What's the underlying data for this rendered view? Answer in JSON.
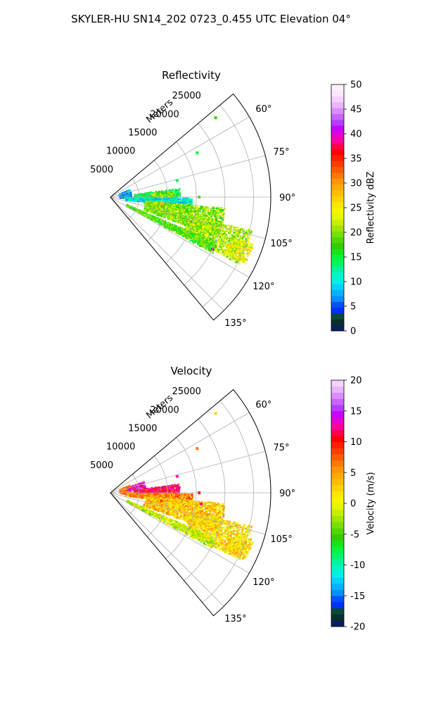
{
  "figure": {
    "suptitle": "SKYLER-HU  SN14_202  0723_0.455 UTC Elevation 04°"
  },
  "chart_data": [
    {
      "type": "heatmap",
      "subtype": "polar-sector-radar-ppi",
      "title": "Reflectivity",
      "radial_label": "Meters",
      "radial_ticks": [
        "5000",
        "10000",
        "15000",
        "20000",
        "25000"
      ],
      "angular_ticks": [
        "60°",
        "75°",
        "90°",
        "105°",
        "120°",
        "135°"
      ],
      "theta_range_deg": [
        50,
        140
      ],
      "r_range_m": [
        0,
        28000
      ],
      "grid": true,
      "colorbar": {
        "label": "Reflectivity dBZ",
        "ticks": [
          "0",
          "5",
          "10",
          "15",
          "20",
          "25",
          "30",
          "35",
          "40",
          "45",
          "50"
        ],
        "range": [
          0,
          50
        ]
      },
      "echo_regions": [
        {
          "theta": [
            66,
            90
          ],
          "r": [
            1500,
            3500
          ],
          "value": 7
        },
        {
          "theta": [
            82,
            90
          ],
          "r": [
            4000,
            12000
          ],
          "value": 15
        },
        {
          "theta": [
            84,
            89
          ],
          "r": [
            7000,
            11000
          ],
          "value": 20
        },
        {
          "theta": [
            90,
            98
          ],
          "r": [
            2500,
            14000
          ],
          "value": 10
        },
        {
          "theta": [
            95,
            110
          ],
          "r": [
            6000,
            20000
          ],
          "value": 20
        },
        {
          "theta": [
            103,
            117
          ],
          "r": [
            14000,
            25000
          ],
          "value": 21
        },
        {
          "theta": [
            113,
            118
          ],
          "r": [
            3000,
            20000
          ],
          "value": 18
        },
        {
          "theta": [
            108,
            116
          ],
          "r": [
            22000,
            26000
          ],
          "value": 24
        }
      ],
      "echo_points": [
        {
          "theta": 117,
          "r": 20000,
          "value": 37
        },
        {
          "theta": 97,
          "r": 9000,
          "value": 28
        },
        {
          "theta": 63,
          "r": 17000,
          "value": 15
        },
        {
          "theta": 53,
          "r": 23000,
          "value": 17
        },
        {
          "theta": 76,
          "r": 12000,
          "value": 14
        },
        {
          "theta": 90,
          "r": 15500,
          "value": 18
        }
      ]
    },
    {
      "type": "heatmap",
      "subtype": "polar-sector-radar-ppi",
      "title": "Velocity",
      "radial_label": "Meters",
      "radial_ticks": [
        "5000",
        "10000",
        "15000",
        "20000",
        "25000"
      ],
      "angular_ticks": [
        "60°",
        "75°",
        "90°",
        "105°",
        "120°",
        "135°"
      ],
      "theta_range_deg": [
        50,
        140
      ],
      "r_range_m": [
        0,
        28000
      ],
      "grid": true,
      "colorbar": {
        "label": "Velocity (m/s)",
        "ticks": [
          "-20",
          "-15",
          "-10",
          "-5",
          "0",
          "5",
          "10",
          "15",
          "20"
        ],
        "range": [
          -20,
          20
        ]
      },
      "echo_regions": [
        {
          "theta": [
            66,
            90
          ],
          "r": [
            1500,
            3500
          ],
          "value": 6
        },
        {
          "theta": [
            70,
            80
          ],
          "r": [
            3000,
            6000
          ],
          "value": 14
        },
        {
          "theta": [
            82,
            90
          ],
          "r": [
            4000,
            12000
          ],
          "value": 11
        },
        {
          "theta": [
            90,
            98
          ],
          "r": [
            2500,
            14000
          ],
          "value": 6
        },
        {
          "theta": [
            95,
            110
          ],
          "r": [
            6000,
            20000
          ],
          "value": 3
        },
        {
          "theta": [
            103,
            117
          ],
          "r": [
            14000,
            25000
          ],
          "value": 2
        },
        {
          "theta": [
            113,
            118
          ],
          "r": [
            3000,
            20000
          ],
          "value": -1
        },
        {
          "theta": [
            108,
            116
          ],
          "r": [
            22000,
            26000
          ],
          "value": 2
        }
      ],
      "echo_points": [
        {
          "theta": 99,
          "r": 9000,
          "value": 8
        },
        {
          "theta": 63,
          "r": 17000,
          "value": 6
        },
        {
          "theta": 53,
          "r": 23000,
          "value": 2
        },
        {
          "theta": 76,
          "r": 12000,
          "value": 12
        },
        {
          "theta": 90,
          "r": 15500,
          "value": 10
        },
        {
          "theta": 97,
          "r": 16000,
          "value": 12
        }
      ]
    }
  ]
}
